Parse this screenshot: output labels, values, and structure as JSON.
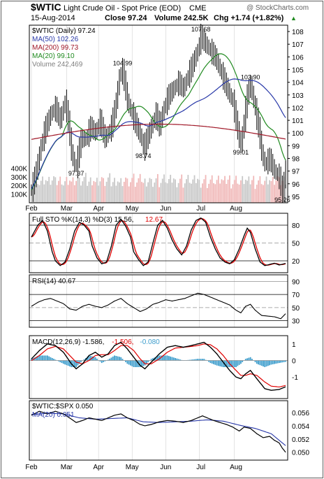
{
  "header": {
    "symbol": "$WTIC",
    "name": "Light Crude Oil - Spot Price (EOD)",
    "exchange": "CME",
    "watermark": "@ StockCharts.com",
    "date": "15-Aug-2014",
    "close_label": "Close 97.24",
    "volume_label": "Volume 242.5K",
    "chg_label": "Chg +1.74 (+1.82%)",
    "chg_arrow": "▲"
  },
  "colors": {
    "up": "#000000",
    "ma50": "#2838a8",
    "ma200": "#a01828",
    "ma20": "#208a20",
    "volume": "#c8c8c8",
    "volume_down": "#f0b8b8",
    "sto_d": "#e00000",
    "macd_hist": "#3d9dcc",
    "grid": "#b0b0b0"
  },
  "x_labels": [
    "Feb",
    "Mar",
    "Apr",
    "May",
    "Jun",
    "Jul",
    "Aug"
  ],
  "chart_data": [
    {
      "type": "line",
      "title": "$WTIC (Daily) 97.24",
      "legend": [
        {
          "label": "$WTIC (Daily) 97.24",
          "color": "#000000"
        },
        {
          "label": "MA(50) 102.26",
          "color": "#2838a8"
        },
        {
          "label": "MA(200) 99.73",
          "color": "#a01828"
        },
        {
          "label": "MA(20) 99.10",
          "color": "#208a20"
        },
        {
          "label": "Volume 242,469",
          "color": "#808080"
        }
      ],
      "legend_placement": "top-left",
      "ylim": [
        94.5,
        108.5
      ],
      "y_ticks": [
        95,
        96,
        97,
        98,
        99,
        100,
        101,
        102,
        103,
        104,
        105,
        106,
        107,
        108
      ],
      "volume_ticks": [
        "100K",
        "200K",
        "300K",
        "400K"
      ],
      "volume_tick_values": [
        100,
        200,
        300,
        400
      ],
      "volume_max": 500,
      "price_anchors": [
        [
          0,
          95.5
        ],
        [
          3,
          97.0
        ],
        [
          6,
          99.0
        ],
        [
          9,
          100.5
        ],
        [
          12,
          101.5
        ],
        [
          15,
          102.0
        ],
        [
          18,
          101.0
        ],
        [
          21,
          102.5
        ],
        [
          23,
          101.0
        ],
        [
          25,
          98.5
        ],
        [
          27,
          97.5
        ],
        [
          28,
          97.37
        ],
        [
          31,
          99.5
        ],
        [
          34,
          99.5
        ],
        [
          37,
          100.5
        ],
        [
          40,
          100.0
        ],
        [
          43,
          101.0
        ],
        [
          46,
          99.5
        ],
        [
          50,
          100.5
        ],
        [
          53,
          102.5
        ],
        [
          55,
          104.5
        ],
        [
          57,
          104.99
        ],
        [
          60,
          102.5
        ],
        [
          63,
          101.5
        ],
        [
          66,
          100.5
        ],
        [
          69,
          99.5
        ],
        [
          70,
          98.74
        ],
        [
          72,
          99.5
        ],
        [
          75,
          100.5
        ],
        [
          78,
          101.5
        ],
        [
          80,
          100.5
        ],
        [
          83,
          102.0
        ],
        [
          86,
          103.0
        ],
        [
          89,
          103.5
        ],
        [
          92,
          104.0
        ],
        [
          95,
          103.5
        ],
        [
          98,
          104.5
        ],
        [
          101,
          105.5
        ],
        [
          104,
          106.5
        ],
        [
          106,
          107.68
        ],
        [
          109,
          107.0
        ],
        [
          112,
          106.5
        ],
        [
          115,
          106.0
        ],
        [
          118,
          105.0
        ],
        [
          121,
          104.0
        ],
        [
          124,
          103.0
        ],
        [
          126,
          102.5
        ],
        [
          128,
          101.0
        ],
        [
          130,
          99.5
        ],
        [
          131,
          99.01
        ],
        [
          133,
          101.0
        ],
        [
          135,
          103.0
        ],
        [
          137,
          103.9
        ],
        [
          139,
          102.5
        ],
        [
          142,
          100.5
        ],
        [
          144,
          98.5
        ],
        [
          146,
          97.5
        ],
        [
          149,
          98.0
        ],
        [
          152,
          97.0
        ],
        [
          155,
          96.5
        ],
        [
          157,
          95.26
        ],
        [
          159,
          97.24
        ]
      ],
      "annotations": [
        {
          "label": "107.68",
          "i": 106,
          "y": 107.68,
          "pos": "above"
        },
        {
          "label": "104.99",
          "i": 57,
          "y": 104.99,
          "pos": "above"
        },
        {
          "label": "103.90",
          "i": 137,
          "y": 103.9,
          "pos": "above"
        },
        {
          "label": "99.01",
          "i": 131,
          "y": 99.01,
          "pos": "below"
        },
        {
          "label": "98.74",
          "i": 70,
          "y": 98.74,
          "pos": "below"
        },
        {
          "label": "97.37",
          "i": 28,
          "y": 97.37,
          "pos": "below"
        },
        {
          "label": "95.26",
          "i": 157,
          "y": 95.26,
          "pos": "below"
        }
      ]
    },
    {
      "type": "line",
      "title": "Full STO %K(14,3) %D(3) 15.56, 12.67",
      "legend": [
        {
          "label": "Full STO %K(14,3) %D(3) 15.56,",
          "color": "#000000"
        },
        {
          "label": "12.67",
          "color": "#e00000"
        }
      ],
      "ylim": [
        0,
        100
      ],
      "y_ticks": [
        20,
        50,
        80
      ],
      "series_anchors": [
        [
          0,
          60
        ],
        [
          4,
          80
        ],
        [
          7,
          88
        ],
        [
          10,
          70
        ],
        [
          13,
          35
        ],
        [
          15,
          20
        ],
        [
          18,
          12
        ],
        [
          21,
          18
        ],
        [
          24,
          40
        ],
        [
          27,
          70
        ],
        [
          30,
          85
        ],
        [
          33,
          80
        ],
        [
          36,
          70
        ],
        [
          38,
          45
        ],
        [
          41,
          25
        ],
        [
          44,
          15
        ],
        [
          47,
          18
        ],
        [
          50,
          45
        ],
        [
          53,
          80
        ],
        [
          56,
          90
        ],
        [
          59,
          78
        ],
        [
          62,
          60
        ],
        [
          64,
          35
        ],
        [
          67,
          22
        ],
        [
          70,
          12
        ],
        [
          73,
          18
        ],
        [
          76,
          50
        ],
        [
          79,
          80
        ],
        [
          82,
          88
        ],
        [
          85,
          75
        ],
        [
          88,
          55
        ],
        [
          91,
          40
        ],
        [
          94,
          30
        ],
        [
          97,
          45
        ],
        [
          100,
          72
        ],
        [
          103,
          88
        ],
        [
          106,
          92
        ],
        [
          109,
          85
        ],
        [
          112,
          60
        ],
        [
          115,
          40
        ],
        [
          118,
          25
        ],
        [
          121,
          18
        ],
        [
          124,
          15
        ],
        [
          127,
          22
        ],
        [
          130,
          40
        ],
        [
          133,
          62
        ],
        [
          135,
          75
        ],
        [
          137,
          68
        ],
        [
          140,
          40
        ],
        [
          143,
          18
        ],
        [
          146,
          12
        ],
        [
          149,
          14
        ],
        [
          152,
          16
        ],
        [
          155,
          13
        ],
        [
          159,
          15.56
        ]
      ]
    },
    {
      "type": "line",
      "title": "RSI(14) 40.67",
      "legend": [
        {
          "label": "RSI(14) 40.67",
          "color": "#000000"
        }
      ],
      "ylim": [
        20,
        100
      ],
      "y_ticks": [
        30,
        50,
        70,
        90
      ],
      "extra_tick_labels": [
        "90",
        "70",
        "50",
        "30"
      ],
      "series_anchors": [
        [
          0,
          52
        ],
        [
          4,
          58
        ],
        [
          8,
          62
        ],
        [
          12,
          64
        ],
        [
          16,
          60
        ],
        [
          20,
          56
        ],
        [
          24,
          48
        ],
        [
          28,
          46
        ],
        [
          32,
          52
        ],
        [
          36,
          55
        ],
        [
          40,
          52
        ],
        [
          44,
          50
        ],
        [
          48,
          54
        ],
        [
          52,
          60
        ],
        [
          56,
          64
        ],
        [
          60,
          56
        ],
        [
          64,
          50
        ],
        [
          68,
          44
        ],
        [
          72,
          48
        ],
        [
          76,
          55
        ],
        [
          80,
          58
        ],
        [
          84,
          62
        ],
        [
          88,
          60
        ],
        [
          92,
          62
        ],
        [
          96,
          64
        ],
        [
          100,
          68
        ],
        [
          104,
          72
        ],
        [
          108,
          70
        ],
        [
          112,
          66
        ],
        [
          116,
          62
        ],
        [
          120,
          58
        ],
        [
          124,
          54
        ],
        [
          128,
          46
        ],
        [
          131,
          42
        ],
        [
          134,
          52
        ],
        [
          137,
          55
        ],
        [
          140,
          46
        ],
        [
          144,
          38
        ],
        [
          148,
          37
        ],
        [
          152,
          36
        ],
        [
          156,
          33
        ],
        [
          159,
          40.67
        ]
      ]
    },
    {
      "type": "line",
      "title": "MACD(12,26,9) -1.586, -1.506, -0.080",
      "legend": [
        {
          "label": "MACD(12,26,9) -1.586,",
          "color": "#000000"
        },
        {
          "label": "-1.506,",
          "color": "#e00000"
        },
        {
          "label": "-0.080",
          "color": "#3d9dcc"
        }
      ],
      "ylim": [
        -2.3,
        1.5
      ],
      "y_ticks": [
        -1,
        0,
        1
      ],
      "macd_anchors": [
        [
          0,
          0.1
        ],
        [
          5,
          0.6
        ],
        [
          10,
          1.0
        ],
        [
          15,
          0.9
        ],
        [
          20,
          0.5
        ],
        [
          25,
          -0.2
        ],
        [
          28,
          -0.5
        ],
        [
          32,
          -0.2
        ],
        [
          36,
          0.3
        ],
        [
          40,
          0.5
        ],
        [
          44,
          0.2
        ],
        [
          48,
          0.4
        ],
        [
          52,
          0.9
        ],
        [
          56,
          1.1
        ],
        [
          60,
          0.7
        ],
        [
          64,
          0.2
        ],
        [
          68,
          -0.3
        ],
        [
          71,
          -0.5
        ],
        [
          75,
          -0.1
        ],
        [
          80,
          0.4
        ],
        [
          85,
          0.8
        ],
        [
          90,
          0.9
        ],
        [
          95,
          0.8
        ],
        [
          100,
          0.9
        ],
        [
          104,
          1.0
        ],
        [
          108,
          1.1
        ],
        [
          112,
          0.8
        ],
        [
          116,
          0.4
        ],
        [
          120,
          -0.1
        ],
        [
          124,
          -0.6
        ],
        [
          128,
          -1.0
        ],
        [
          131,
          -1.1
        ],
        [
          134,
          -0.8
        ],
        [
          137,
          -0.6
        ],
        [
          141,
          -1.1
        ],
        [
          146,
          -1.7
        ],
        [
          150,
          -1.8
        ],
        [
          155,
          -1.75
        ],
        [
          159,
          -1.586
        ]
      ],
      "signal_anchors": [
        [
          0,
          0.0
        ],
        [
          5,
          0.3
        ],
        [
          10,
          0.7
        ],
        [
          15,
          0.85
        ],
        [
          20,
          0.7
        ],
        [
          25,
          0.2
        ],
        [
          28,
          -0.1
        ],
        [
          32,
          -0.2
        ],
        [
          36,
          0.0
        ],
        [
          40,
          0.3
        ],
        [
          44,
          0.35
        ],
        [
          48,
          0.35
        ],
        [
          52,
          0.6
        ],
        [
          56,
          0.9
        ],
        [
          60,
          0.9
        ],
        [
          64,
          0.6
        ],
        [
          68,
          0.1
        ],
        [
          71,
          -0.2
        ],
        [
          75,
          -0.2
        ],
        [
          80,
          0.1
        ],
        [
          85,
          0.5
        ],
        [
          90,
          0.75
        ],
        [
          95,
          0.8
        ],
        [
          100,
          0.85
        ],
        [
          104,
          0.9
        ],
        [
          108,
          1.0
        ],
        [
          112,
          0.95
        ],
        [
          116,
          0.7
        ],
        [
          120,
          0.3
        ],
        [
          124,
          -0.2
        ],
        [
          128,
          -0.6
        ],
        [
          131,
          -0.9
        ],
        [
          134,
          -0.9
        ],
        [
          137,
          -0.8
        ],
        [
          141,
          -0.9
        ],
        [
          146,
          -1.3
        ],
        [
          150,
          -1.55
        ],
        [
          155,
          -1.6
        ],
        [
          159,
          -1.506
        ]
      ]
    },
    {
      "type": "line",
      "title": "$WTIC:$SPX 0.050",
      "legend": [
        {
          "label": "$WTIC:$SPX 0.050",
          "color": "#000000"
        },
        {
          "label": "MA(20) 0.051",
          "color": "#2838a8"
        }
      ],
      "ylim": [
        0.0488,
        0.0578
      ],
      "y_ticks": [
        0.05,
        0.052,
        0.054,
        0.056
      ],
      "tick_labels": [
        "0.050",
        "0.052",
        "0.054",
        "0.056"
      ],
      "series_anchors": [
        [
          0,
          0.0556
        ],
        [
          5,
          0.0562
        ],
        [
          10,
          0.0558
        ],
        [
          15,
          0.0562
        ],
        [
          20,
          0.0558
        ],
        [
          25,
          0.055
        ],
        [
          28,
          0.0545
        ],
        [
          32,
          0.0548
        ],
        [
          36,
          0.0552
        ],
        [
          40,
          0.055
        ],
        [
          44,
          0.0548
        ],
        [
          48,
          0.0552
        ],
        [
          52,
          0.0556
        ],
        [
          56,
          0.0558
        ],
        [
          60,
          0.0552
        ],
        [
          64,
          0.0548
        ],
        [
          68,
          0.0542
        ],
        [
          71,
          0.054
        ],
        [
          75,
          0.0542
        ],
        [
          80,
          0.0546
        ],
        [
          85,
          0.0548
        ],
        [
          90,
          0.0547
        ],
        [
          95,
          0.0545
        ],
        [
          100,
          0.0548
        ],
        [
          104,
          0.0552
        ],
        [
          107,
          0.0555
        ],
        [
          110,
          0.0552
        ],
        [
          114,
          0.0548
        ],
        [
          118,
          0.0545
        ],
        [
          122,
          0.0542
        ],
        [
          126,
          0.0538
        ],
        [
          130,
          0.0532
        ],
        [
          133,
          0.0538
        ],
        [
          137,
          0.0536
        ],
        [
          141,
          0.0528
        ],
        [
          145,
          0.0522
        ],
        [
          149,
          0.0524
        ],
        [
          152,
          0.0518
        ],
        [
          155,
          0.0514
        ],
        [
          157,
          0.0506
        ],
        [
          159,
          0.05
        ]
      ],
      "ma_anchors": [
        [
          0,
          0.0557
        ],
        [
          10,
          0.0559
        ],
        [
          20,
          0.0558
        ],
        [
          30,
          0.0552
        ],
        [
          40,
          0.055
        ],
        [
          50,
          0.0551
        ],
        [
          60,
          0.0552
        ],
        [
          70,
          0.0546
        ],
        [
          80,
          0.0545
        ],
        [
          90,
          0.0546
        ],
        [
          100,
          0.0547
        ],
        [
          110,
          0.0549
        ],
        [
          120,
          0.0547
        ],
        [
          130,
          0.0541
        ],
        [
          140,
          0.0536
        ],
        [
          150,
          0.0528
        ],
        [
          159,
          0.051
        ]
      ]
    }
  ]
}
